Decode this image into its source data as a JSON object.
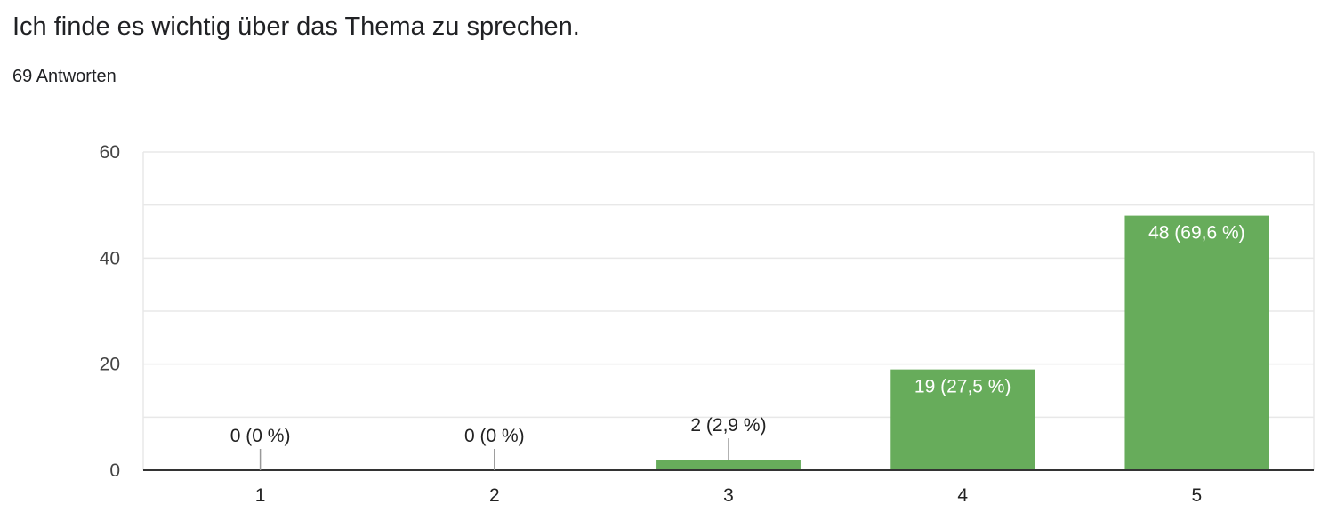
{
  "question": {
    "title": "Ich finde es wichtig über das Thema zu sprechen.",
    "responses": "69 Antworten"
  },
  "colors": {
    "bar": "#67ac5b",
    "grid": "#e8e8e8",
    "axis": "#333333",
    "stem": "#999999"
  },
  "chart_data": {
    "type": "bar",
    "title": "Ich finde es wichtig über das Thema zu sprechen.",
    "subtitle": "69 Antworten",
    "categories": [
      "1",
      "2",
      "3",
      "4",
      "5"
    ],
    "values": [
      0,
      0,
      2,
      19,
      48
    ],
    "data_labels": [
      "0 (0 %)",
      "0 (0 %)",
      "2 (2,9 %)",
      "19 (27,5 %)",
      "48 (69,6 %)"
    ],
    "yticks": [
      "0",
      "20",
      "40",
      "60"
    ],
    "ylim": [
      0,
      60
    ],
    "xlabel": "",
    "ylabel": "",
    "grid": true,
    "legend": "none"
  }
}
